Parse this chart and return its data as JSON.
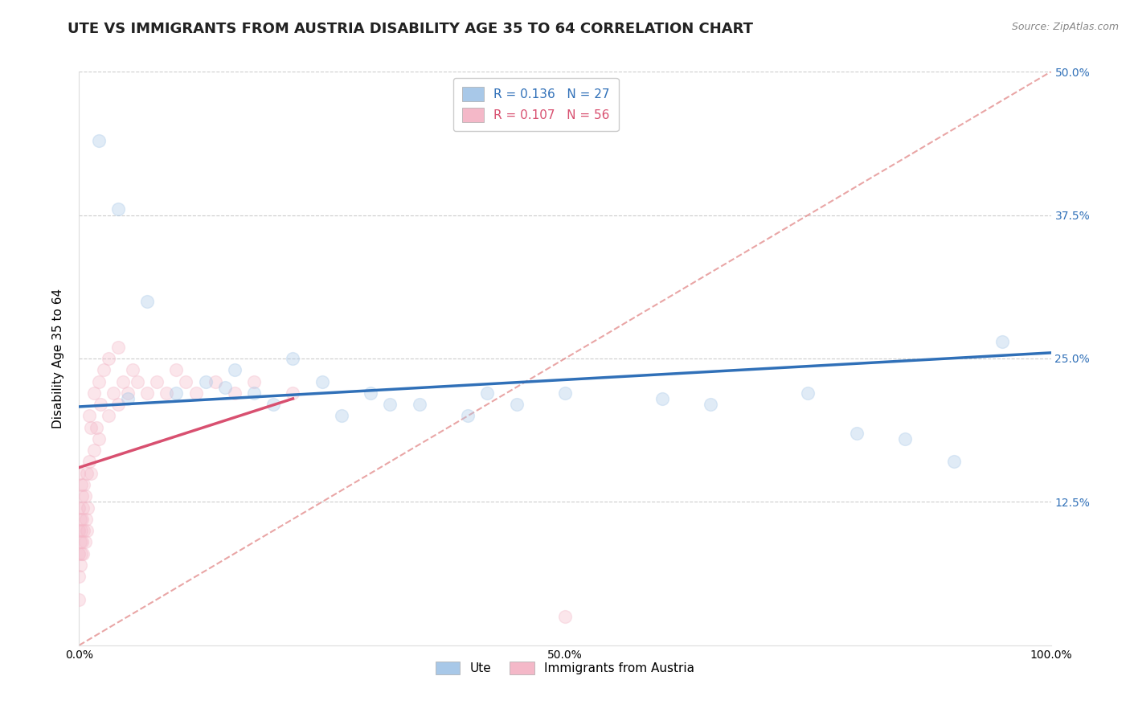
{
  "title": "UTE VS IMMIGRANTS FROM AUSTRIA DISABILITY AGE 35 TO 64 CORRELATION CHART",
  "source": "Source: ZipAtlas.com",
  "ylabel": "Disability Age 35 to 64",
  "ute_R": 0.136,
  "ute_N": 27,
  "austria_R": 0.107,
  "austria_N": 56,
  "ute_color": "#a8c8e8",
  "austria_color": "#f4b8c8",
  "ute_line_color": "#3070b8",
  "austria_line_color": "#d85070",
  "diagonal_color": "#e08080",
  "background_color": "#ffffff",
  "grid_color": "#cccccc",
  "xlim": [
    0,
    1.0
  ],
  "ylim": [
    0,
    0.5
  ],
  "yticks": [
    0.0,
    0.125,
    0.25,
    0.375,
    0.5
  ],
  "ytick_labels": [
    "",
    "12.5%",
    "25.0%",
    "37.5%",
    "50.0%"
  ],
  "xticks": [
    0.0,
    0.25,
    0.5,
    0.75,
    1.0
  ],
  "xtick_labels": [
    "0.0%",
    "",
    "50.0%",
    "",
    "100.0%"
  ],
  "title_fontsize": 13,
  "axis_label_fontsize": 11,
  "tick_fontsize": 10,
  "legend_fontsize": 11,
  "marker_size": 130,
  "marker_alpha": 0.35,
  "ute_x": [
    0.02,
    0.04,
    0.07,
    0.1,
    0.13,
    0.16,
    0.18,
    0.2,
    0.22,
    0.25,
    0.27,
    0.3,
    0.32,
    0.4,
    0.42,
    0.45,
    0.5,
    0.6,
    0.65,
    0.75,
    0.8,
    0.85,
    0.9,
    0.95,
    0.05,
    0.15,
    0.35
  ],
  "ute_y": [
    0.44,
    0.38,
    0.3,
    0.22,
    0.23,
    0.24,
    0.22,
    0.21,
    0.25,
    0.23,
    0.2,
    0.22,
    0.21,
    0.2,
    0.22,
    0.21,
    0.22,
    0.215,
    0.21,
    0.22,
    0.185,
    0.18,
    0.16,
    0.265,
    0.215,
    0.225,
    0.21
  ],
  "austria_x": [
    0.0,
    0.0,
    0.0,
    0.0,
    0.0,
    0.0,
    0.001,
    0.001,
    0.001,
    0.002,
    0.002,
    0.002,
    0.003,
    0.003,
    0.003,
    0.004,
    0.004,
    0.005,
    0.005,
    0.006,
    0.006,
    0.007,
    0.008,
    0.008,
    0.009,
    0.01,
    0.01,
    0.012,
    0.012,
    0.015,
    0.015,
    0.018,
    0.02,
    0.02,
    0.022,
    0.025,
    0.03,
    0.03,
    0.035,
    0.04,
    0.04,
    0.045,
    0.05,
    0.055,
    0.06,
    0.07,
    0.08,
    0.09,
    0.1,
    0.11,
    0.12,
    0.14,
    0.16,
    0.18,
    0.22,
    0.5
  ],
  "austria_y": [
    0.04,
    0.06,
    0.08,
    0.1,
    0.12,
    0.15,
    0.07,
    0.09,
    0.11,
    0.08,
    0.1,
    0.14,
    0.09,
    0.11,
    0.13,
    0.08,
    0.12,
    0.1,
    0.14,
    0.09,
    0.13,
    0.11,
    0.1,
    0.15,
    0.12,
    0.16,
    0.2,
    0.15,
    0.19,
    0.17,
    0.22,
    0.19,
    0.18,
    0.23,
    0.21,
    0.24,
    0.2,
    0.25,
    0.22,
    0.21,
    0.26,
    0.23,
    0.22,
    0.24,
    0.23,
    0.22,
    0.23,
    0.22,
    0.24,
    0.23,
    0.22,
    0.23,
    0.22,
    0.23,
    0.22,
    0.025
  ]
}
